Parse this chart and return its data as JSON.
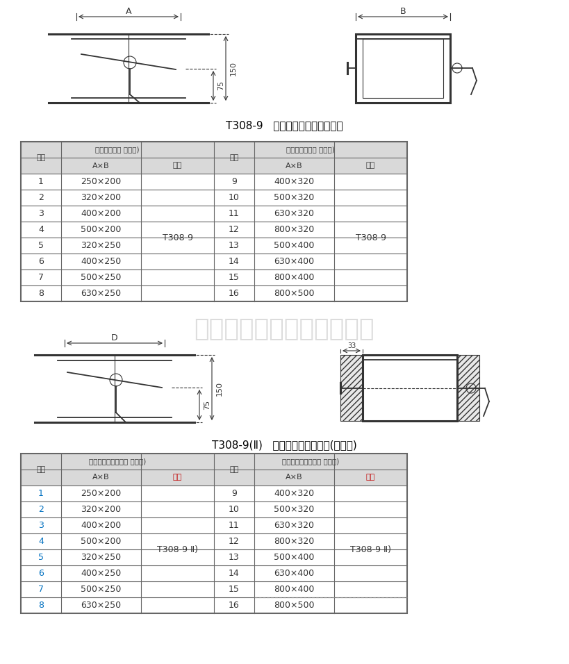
{
  "bg_color": "#ffffff",
  "title1": "T308-9   矩形钢制蝶阀（手柄式）",
  "title2": "T308-9(Ⅱ)   保温型矩形钢制蝶阀(手柄式)",
  "watermark": "山东旻泽空调设备有限公司",
  "table1_header_left": "矩形钢制蝶阀 手柄式)",
  "table1_header_right": "矩方形钢制蝶阀 手柄式)",
  "table2_header_left": "保温型矩形钢制蝶阀 手柄式)",
  "table2_header_right": "保温型矩形钢制蝶阀 手柄式)",
  "rows_left": [
    [
      "1",
      "250×200"
    ],
    [
      "2",
      "320×200"
    ],
    [
      "3",
      "400×200"
    ],
    [
      "4",
      "500×200"
    ],
    [
      "5",
      "320×250"
    ],
    [
      "6",
      "400×250"
    ],
    [
      "7",
      "500×250"
    ],
    [
      "8",
      "630×250"
    ]
  ],
  "rows_right": [
    [
      "9",
      "400×320"
    ],
    [
      "10",
      "500×320"
    ],
    [
      "11",
      "630×320"
    ],
    [
      "12",
      "800×320"
    ],
    [
      "13",
      "500×400"
    ],
    [
      "14",
      "630×400"
    ],
    [
      "15",
      "800×400"
    ],
    [
      "16",
      "800×500"
    ]
  ],
  "fig_num1": "T308-9",
  "fig_num2": "T308-9",
  "fig_num3": "T308-9 Ⅱ)",
  "fig_num4": "T308-9 Ⅱ)",
  "header_bg": "#d9d9d9",
  "border_color": "#666666",
  "text_color": "#000000",
  "red_color": "#c00000",
  "blue_color": "#0070c0",
  "draw_color": "#333333"
}
